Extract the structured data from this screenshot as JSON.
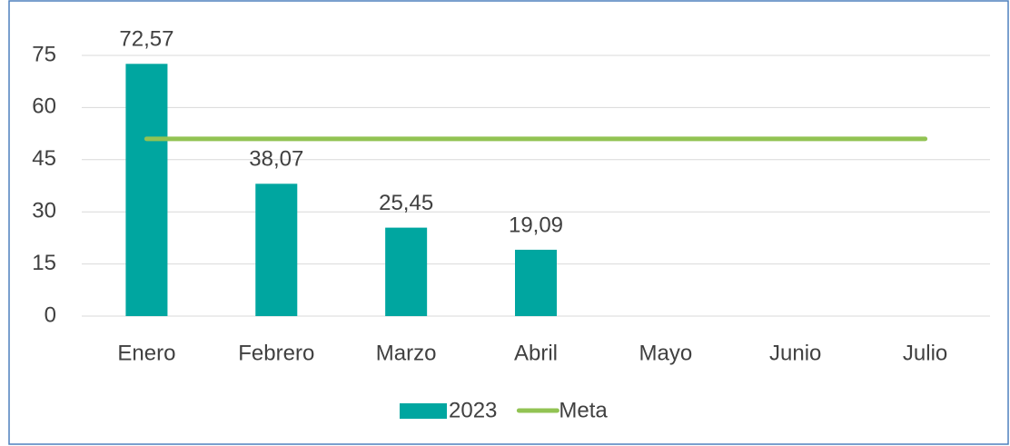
{
  "chart_data": {
    "type": "bar",
    "categories": [
      "Enero",
      "Febrero",
      "Marzo",
      "Abril",
      "Mayo",
      "Junio",
      "Julio"
    ],
    "series": [
      {
        "name": "2023",
        "type": "bar",
        "color": "#00a6a0",
        "values": [
          72.57,
          38.07,
          25.45,
          19.09,
          null,
          null,
          null
        ],
        "value_labels": [
          "72,57",
          "38,07",
          "25,45",
          "19,09",
          null,
          null,
          null
        ]
      },
      {
        "name": "Meta",
        "type": "line",
        "color": "#92c353",
        "values": [
          51,
          51,
          51,
          51,
          51,
          51,
          51
        ]
      }
    ],
    "ylim": [
      0,
      75
    ],
    "yticks": [
      0,
      15,
      30,
      45,
      60,
      75
    ],
    "grid": true,
    "legend": "bottom"
  }
}
